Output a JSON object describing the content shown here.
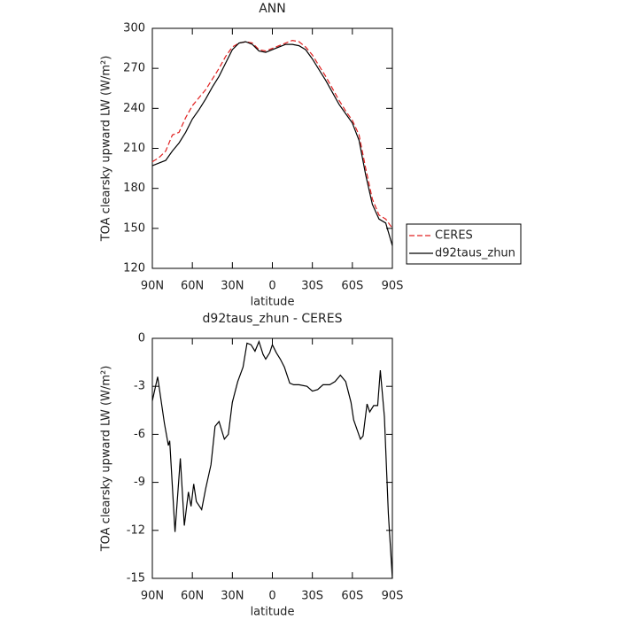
{
  "chart_data": [
    {
      "type": "line",
      "title": "ANN",
      "ylabel": "TOA clearsky upward LW (W/m²)",
      "xlabel": "latitude",
      "x": [
        90,
        85,
        80,
        75,
        70,
        65,
        60,
        55,
        50,
        45,
        40,
        35,
        30,
        25,
        20,
        15,
        10,
        5,
        0,
        -5,
        -10,
        -15,
        -20,
        -25,
        -30,
        -35,
        -40,
        -45,
        -50,
        -55,
        -60,
        -65,
        -70,
        -75,
        -80,
        -85,
        -90
      ],
      "series": [
        {
          "name": "CERES",
          "color": "#e02020",
          "dashed": true,
          "values": [
            200,
            203,
            208,
            220,
            222,
            233,
            242,
            248,
            254,
            262,
            270,
            279,
            286,
            289,
            290,
            289,
            284,
            283,
            285,
            287,
            289,
            291,
            290,
            286,
            280,
            272,
            264,
            255,
            246,
            238,
            231,
            220,
            195,
            172,
            160,
            157,
            150
          ]
        },
        {
          "name": "d92taus_zhun",
          "color": "#000000",
          "dashed": false,
          "values": [
            197,
            199,
            201,
            208,
            214,
            222,
            232,
            239,
            247,
            256,
            264,
            274,
            284,
            289,
            290,
            288,
            283,
            282,
            284,
            286,
            288,
            288,
            287,
            284,
            277,
            269,
            261,
            252,
            243,
            236,
            229,
            216,
            190,
            168,
            157,
            154,
            137
          ]
        }
      ],
      "xlim": [
        90,
        -90
      ],
      "xticks": [
        {
          "value": 90,
          "label": "90N"
        },
        {
          "value": 60,
          "label": "60N"
        },
        {
          "value": 30,
          "label": "30N"
        },
        0,
        {
          "value": -30,
          "label": "30S"
        },
        {
          "value": -60,
          "label": "60S"
        },
        {
          "value": -90,
          "label": "90S"
        }
      ],
      "ylim": [
        120,
        300
      ],
      "yticks": [
        120,
        150,
        180,
        210,
        240,
        270,
        300
      ],
      "legend": "right"
    },
    {
      "type": "line",
      "title": "d92taus_zhun - CERES",
      "ylabel": "TOA clearsky upward LW (W/m²)",
      "xlabel": "latitude",
      "x": [
        90,
        86,
        81,
        78,
        77,
        73,
        69,
        66,
        63,
        61,
        59,
        57,
        53,
        50,
        46,
        43,
        40,
        36,
        33,
        30,
        26,
        22,
        19,
        16,
        13,
        10,
        7,
        5,
        2,
        0,
        -3,
        -6,
        -9,
        -13,
        -16,
        -20,
        -26,
        -30,
        -34,
        -38,
        -43,
        -47,
        -51,
        -55,
        -59,
        -61,
        -66,
        -68,
        -71,
        -73,
        -76,
        -79,
        -81,
        -84,
        -87,
        -90
      ],
      "values": [
        -3.9,
        -2.4,
        -5.3,
        -6.7,
        -6.4,
        -12.1,
        -7.5,
        -11.7,
        -9.6,
        -10.5,
        -9.1,
        -10.2,
        -10.7,
        -9.4,
        -7.9,
        -5.5,
        -5.2,
        -6.3,
        -6.0,
        -4.0,
        -2.7,
        -1.8,
        -0.3,
        -0.4,
        -0.8,
        -0.2,
        -1.0,
        -1.3,
        -0.9,
        -0.4,
        -0.9,
        -1.3,
        -1.8,
        -2.8,
        -2.9,
        -2.9,
        -3.0,
        -3.3,
        -3.2,
        -2.9,
        -2.9,
        -2.7,
        -2.3,
        -2.7,
        -4.0,
        -5.1,
        -6.3,
        -6.1,
        -4.1,
        -4.6,
        -4.2,
        -4.2,
        -2.0,
        -4.9,
        -11.0,
        -15.0
      ],
      "color": "#000000",
      "xlim": [
        90,
        -90
      ],
      "xticks": [
        {
          "value": 90,
          "label": "90N"
        },
        {
          "value": 60,
          "label": "60N"
        },
        {
          "value": 30,
          "label": "30N"
        },
        0,
        {
          "value": -30,
          "label": "30S"
        },
        {
          "value": -60,
          "label": "60S"
        },
        {
          "value": -90,
          "label": "90S"
        }
      ],
      "ylim": [
        -15,
        0
      ],
      "yticks": [
        -15,
        -12,
        -9,
        -6,
        -3,
        0
      ]
    }
  ]
}
